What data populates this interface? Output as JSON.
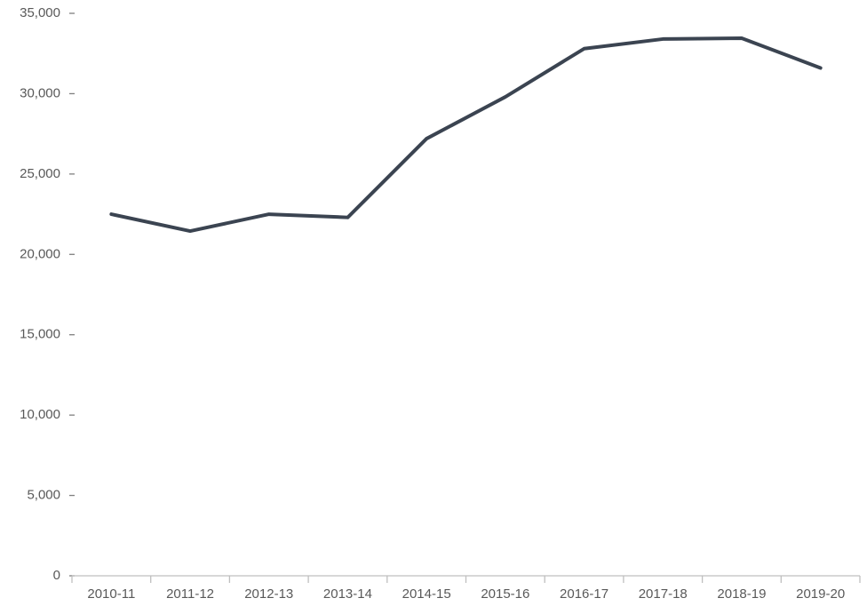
{
  "chart_data": {
    "type": "line",
    "categories": [
      "2010-11",
      "2011-12",
      "2012-13",
      "2013-14",
      "2014-15",
      "2015-16",
      "2016-17",
      "2017-18",
      "2018-19",
      "2019-20"
    ],
    "values": [
      22500,
      21450,
      22500,
      22300,
      27200,
      29800,
      32800,
      33400,
      33450,
      31600
    ],
    "color": "#3b4451",
    "ylim": [
      0,
      35000
    ],
    "yticks": [
      0,
      {
        "value": 5000,
        "label": "5,000"
      },
      {
        "value": 10000,
        "label": "10,000"
      },
      {
        "value": 15000,
        "label": "15,000"
      },
      {
        "value": 20000,
        "label": "20,000"
      },
      {
        "value": 25000,
        "label": "25,000"
      },
      {
        "value": 30000,
        "label": "30,000"
      },
      {
        "value": 35000,
        "label": "35,000"
      }
    ],
    "grid": false
  }
}
